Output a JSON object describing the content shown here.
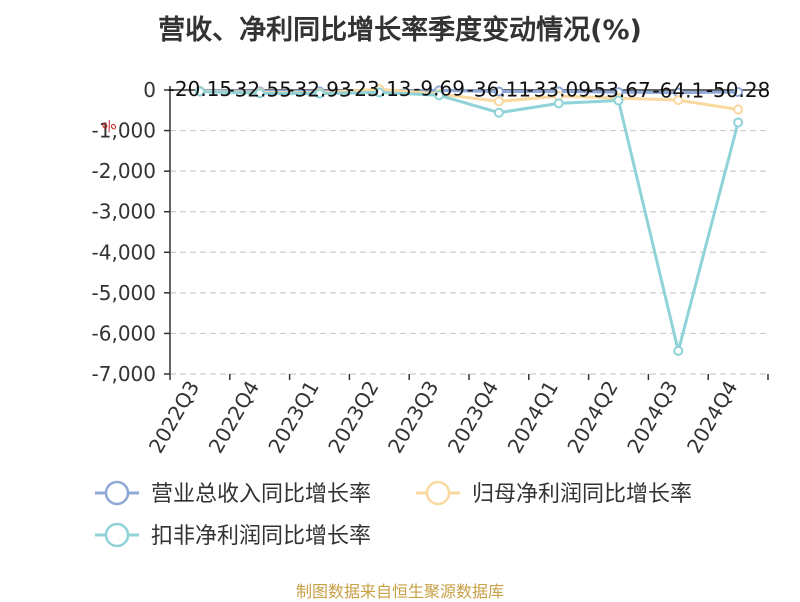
{
  "title": "营收、净利同比增长率季度变动情况(%)",
  "source": "制图数据来自恒生聚源数据库",
  "chart_data": {
    "type": "line",
    "title": "营收、净利同比增长率季度变动情况(%)",
    "ylabel": "%",
    "ylim": [
      -7000,
      0
    ],
    "yticks": [
      0,
      -1000,
      -2000,
      -3000,
      -4000,
      -5000,
      -6000,
      -7000
    ],
    "ytick_labels": [
      "0",
      "-1,000",
      "-2,000",
      "-3,000",
      "-4,000",
      "-5,000",
      "-6,000",
      "-7,000"
    ],
    "grid": true,
    "legend_position": "bottom",
    "categories": [
      "2022Q3",
      "2022Q4",
      "2023Q1",
      "2023Q2",
      "2023Q3",
      "2023Q4",
      "2024Q1",
      "2024Q2",
      "2024Q3",
      "2024Q4"
    ],
    "series": [
      {
        "name": "营业总收入同比增长率",
        "color": "#8fa8d6",
        "values": [
          -20.15,
          -32.55,
          -32.93,
          -23.13,
          -9.69,
          -36.11,
          -33.09,
          -53.67,
          -64.1,
          -50.28
        ],
        "labels": [
          "-20.15",
          "-32.55",
          "-32.93",
          "-23.13",
          "-9.69",
          "-36.11",
          "-33.09",
          "-53.67",
          "-64.1",
          "-50.28"
        ]
      },
      {
        "name": "归母净利润同比增长率",
        "color": "#f9d9a0",
        "values": [
          -30,
          -60,
          -70,
          20,
          -100,
          -280,
          -150,
          -200,
          -250,
          -480
        ]
      },
      {
        "name": "扣非净利润同比增长率",
        "color": "#8fd3d8",
        "values": [
          -40,
          -80,
          -90,
          -60,
          -130,
          -560,
          -330,
          -260,
          -6430,
          -800
        ]
      }
    ]
  }
}
